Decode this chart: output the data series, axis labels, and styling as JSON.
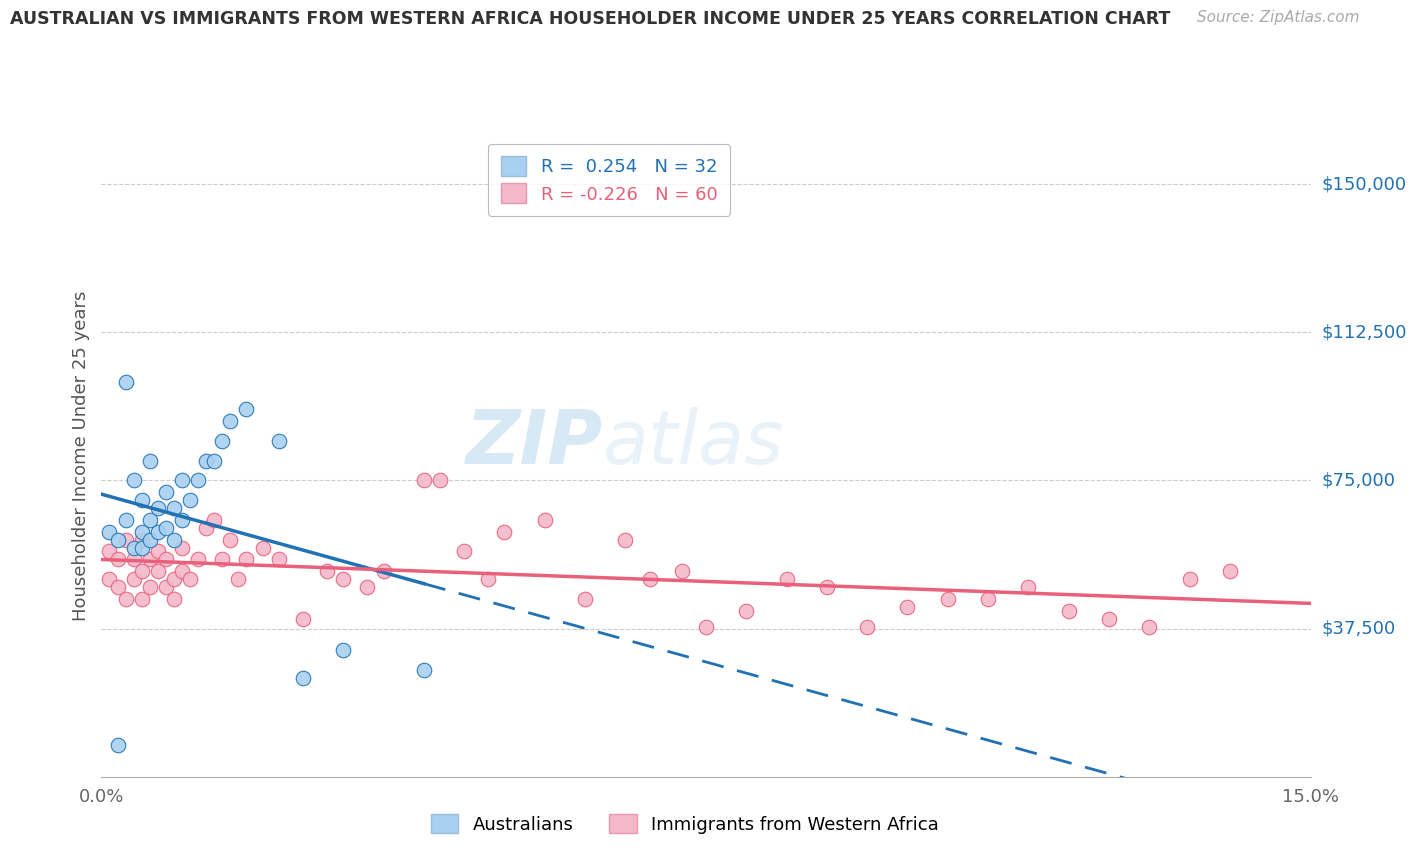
{
  "title": "AUSTRALIAN VS IMMIGRANTS FROM WESTERN AFRICA HOUSEHOLDER INCOME UNDER 25 YEARS CORRELATION CHART",
  "source": "Source: ZipAtlas.com",
  "ylabel": "Householder Income Under 25 years",
  "xlim": [
    0.0,
    0.15
  ],
  "ylim": [
    0,
    162500
  ],
  "yticks": [
    37500,
    75000,
    112500,
    150000
  ],
  "ytick_labels": [
    "$37,500",
    "$75,000",
    "$112,500",
    "$150,000"
  ],
  "xticks": [
    0.0,
    0.05,
    0.1,
    0.15
  ],
  "xtick_labels": [
    "0.0%",
    "",
    "",
    "15.0%"
  ],
  "blue_color": "#a8d0f0",
  "pink_color": "#f5b8cb",
  "blue_line_color": "#2171b5",
  "pink_line_color": "#e8607a",
  "watermark_zip": "ZIP",
  "watermark_atlas": "atlas",
  "aus_x": [
    0.001,
    0.002,
    0.002,
    0.003,
    0.003,
    0.004,
    0.004,
    0.005,
    0.005,
    0.005,
    0.006,
    0.006,
    0.006,
    0.007,
    0.007,
    0.008,
    0.008,
    0.009,
    0.009,
    0.01,
    0.01,
    0.011,
    0.012,
    0.013,
    0.014,
    0.015,
    0.016,
    0.018,
    0.022,
    0.025,
    0.03,
    0.04
  ],
  "aus_y": [
    62000,
    60000,
    8000,
    65000,
    100000,
    58000,
    75000,
    62000,
    58000,
    70000,
    60000,
    65000,
    80000,
    62000,
    68000,
    63000,
    72000,
    60000,
    68000,
    65000,
    75000,
    70000,
    75000,
    80000,
    80000,
    85000,
    90000,
    93000,
    85000,
    25000,
    32000,
    27000
  ],
  "imm_x": [
    0.001,
    0.001,
    0.002,
    0.002,
    0.003,
    0.003,
    0.004,
    0.004,
    0.005,
    0.005,
    0.005,
    0.006,
    0.006,
    0.007,
    0.007,
    0.008,
    0.008,
    0.009,
    0.009,
    0.01,
    0.01,
    0.011,
    0.012,
    0.013,
    0.014,
    0.015,
    0.016,
    0.017,
    0.018,
    0.02,
    0.022,
    0.025,
    0.028,
    0.03,
    0.033,
    0.035,
    0.04,
    0.042,
    0.045,
    0.048,
    0.05,
    0.055,
    0.06,
    0.065,
    0.068,
    0.072,
    0.075,
    0.08,
    0.085,
    0.09,
    0.095,
    0.1,
    0.105,
    0.11,
    0.115,
    0.12,
    0.125,
    0.13,
    0.135,
    0.14
  ],
  "imm_y": [
    57000,
    50000,
    55000,
    48000,
    60000,
    45000,
    50000,
    55000,
    52000,
    60000,
    45000,
    55000,
    48000,
    52000,
    57000,
    48000,
    55000,
    50000,
    45000,
    52000,
    58000,
    50000,
    55000,
    63000,
    65000,
    55000,
    60000,
    50000,
    55000,
    58000,
    55000,
    40000,
    52000,
    50000,
    48000,
    52000,
    75000,
    75000,
    57000,
    50000,
    62000,
    65000,
    45000,
    60000,
    50000,
    52000,
    38000,
    42000,
    50000,
    48000,
    38000,
    43000,
    45000,
    45000,
    48000,
    42000,
    40000,
    38000,
    50000,
    52000
  ],
  "blue_line_x_start": 0.0,
  "blue_line_x_solid_end": 0.04,
  "blue_line_x_end": 0.15,
  "pink_line_x_start": 0.0,
  "pink_line_x_end": 0.15
}
